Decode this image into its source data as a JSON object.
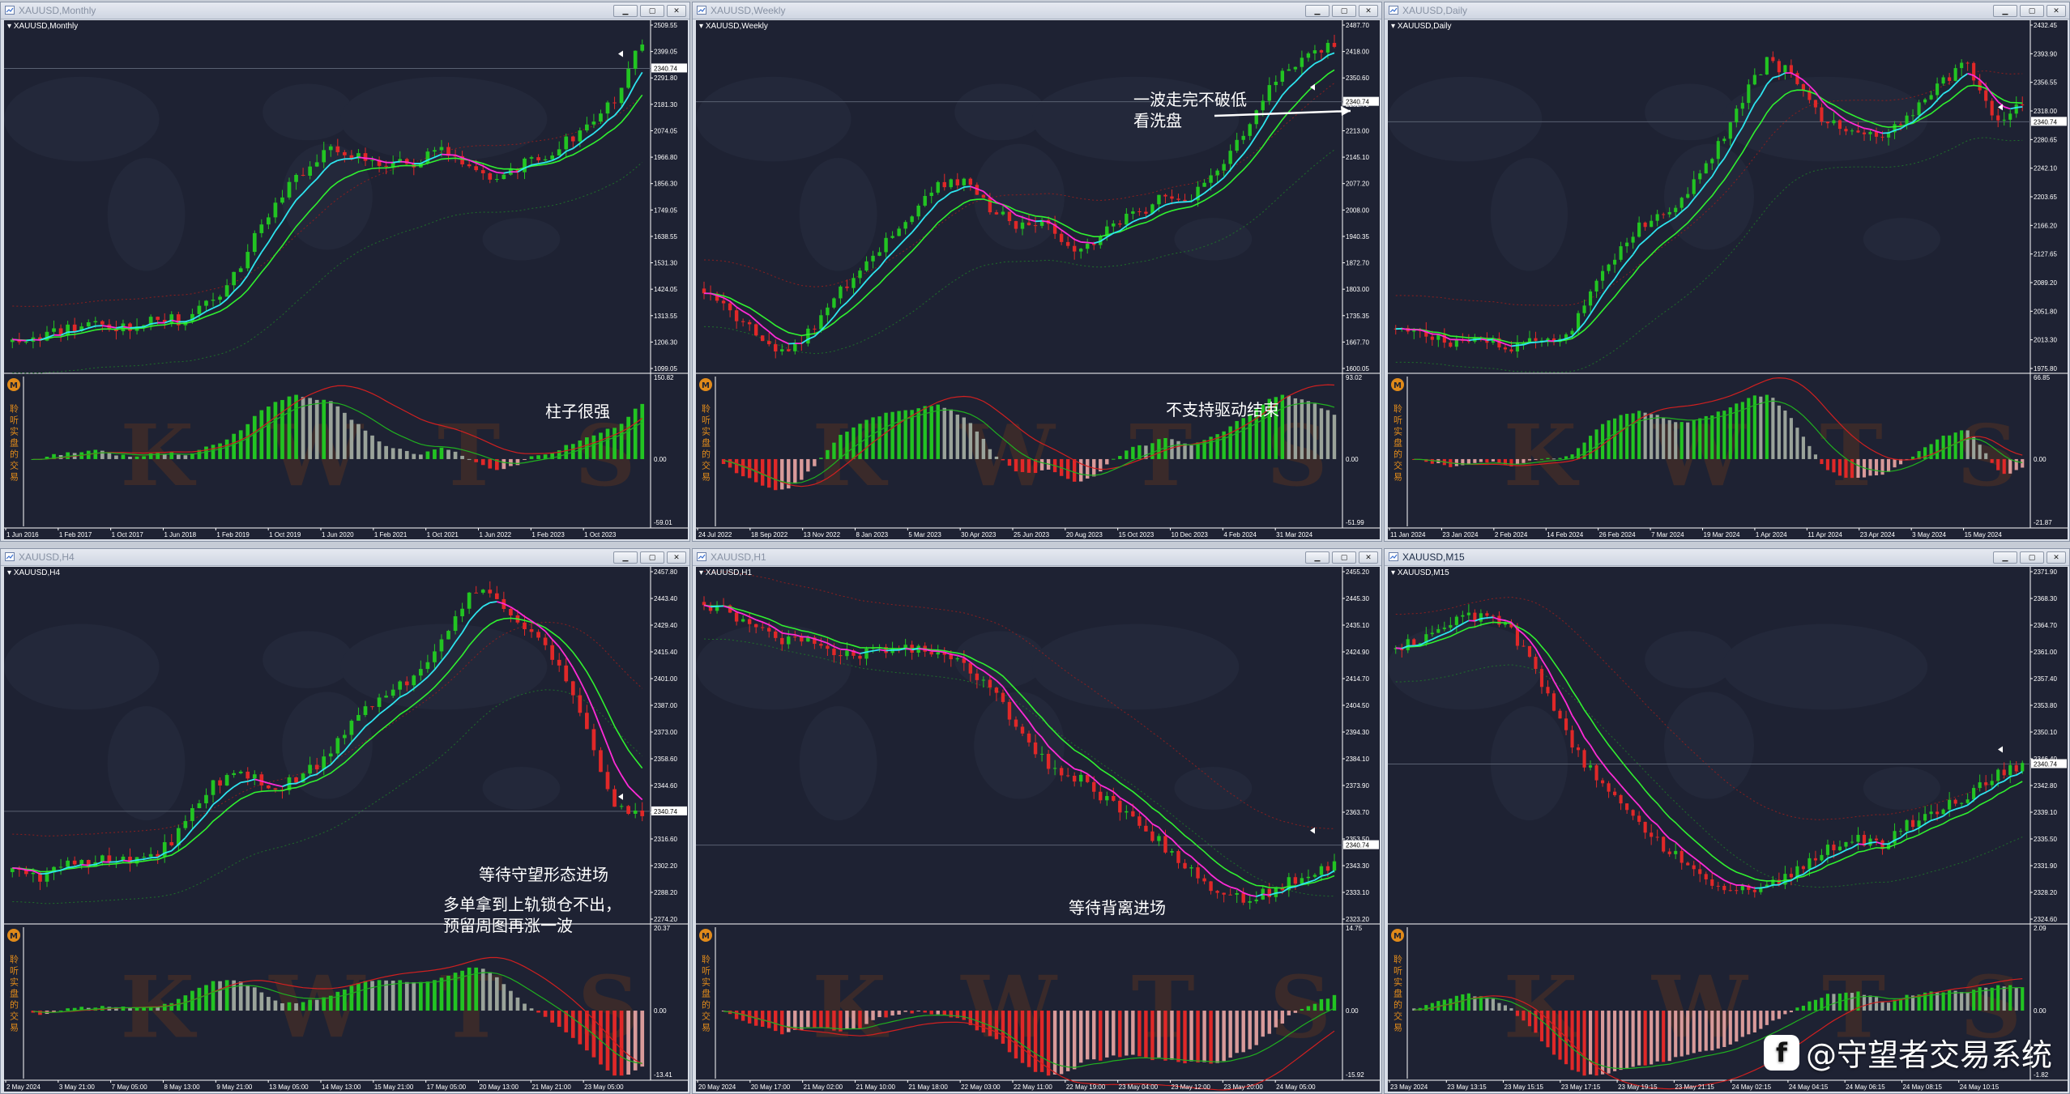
{
  "windows": [
    {
      "title": "XAUUSD,Monthly",
      "symbol": "XAUUSD,Monthly",
      "active": false,
      "price_ticks": [
        "2509.55",
        "2399.05",
        "2291.80",
        "2181.30",
        "2074.05",
        "1966.80",
        "1856.30",
        "1749.05",
        "1638.55",
        "1531.30",
        "1424.05",
        "1313.55",
        "1206.30",
        "1099.05"
      ],
      "current_price": "2340.74",
      "osc_ticks": [
        "150.82",
        "0.00",
        "-59.01"
      ],
      "time_ticks": [
        "1 Jun 2016",
        "1 Feb 2017",
        "1 Oct 2017",
        "1 Jun 2018",
        "1 Feb 2019",
        "1 Oct 2019",
        "1 Jun 2020",
        "1 Feb 2021",
        "1 Oct 2021",
        "1 Jun 2022",
        "1 Feb 2023",
        "1 Oct 2023"
      ],
      "annotations": [
        "柱子很强"
      ]
    },
    {
      "title": "XAUUSD,Weekly",
      "symbol": "XAUUSD,Weekly",
      "active": false,
      "price_ticks": [
        "2487.70",
        "2418.00",
        "2350.60",
        "2282.70",
        "2213.00",
        "2145.10",
        "2077.20",
        "2008.00",
        "1940.35",
        "1872.70",
        "1803.00",
        "1735.35",
        "1667.70",
        "1600.05"
      ],
      "current_price": "2340.74",
      "osc_ticks": [
        "93.02",
        "0.00",
        "-51.99"
      ],
      "time_ticks": [
        "24 Jul 2022",
        "18 Sep 2022",
        "13 Nov 2022",
        "8 Jan 2023",
        "5 Mar 2023",
        "30 Apr 2023",
        "25 Jun 2023",
        "20 Aug 2023",
        "15 Oct 2023",
        "10 Dec 2023",
        "4 Feb 2024",
        "31 Mar 2024"
      ],
      "annotations": [
        "一波走完不破低",
        "看洗盘",
        "不支持驱动结束"
      ]
    },
    {
      "title": "XAUUSD,Daily",
      "symbol": "XAUUSD,Daily",
      "active": false,
      "price_ticks": [
        "2432.45",
        "2393.90",
        "2356.55",
        "2318.00",
        "2280.65",
        "2242.10",
        "2203.65",
        "2166.20",
        "2127.65",
        "2089.20",
        "2051.80",
        "2013.30",
        "1975.80"
      ],
      "current_price": "2340.74",
      "osc_ticks": [
        "66.85",
        "0.00",
        "-21.87"
      ],
      "time_ticks": [
        "11 Jan 2024",
        "23 Jan 2024",
        "2 Feb 2024",
        "14 Feb 2024",
        "26 Feb 2024",
        "7 Mar 2024",
        "19 Mar 2024",
        "1 Apr 2024",
        "11 Apr 2024",
        "23 Apr 2024",
        "3 May 2024",
        "15 May 2024"
      ],
      "annotations": []
    },
    {
      "title": "XAUUSD,H4",
      "symbol": "XAUUSD,H4",
      "active": false,
      "price_ticks": [
        "2457.80",
        "2443.40",
        "2429.40",
        "2415.40",
        "2401.00",
        "2387.00",
        "2373.00",
        "2358.60",
        "2344.60",
        "2330.60",
        "2316.60",
        "2302.20",
        "2288.20",
        "2274.20"
      ],
      "current_price": "2340.74",
      "osc_ticks": [
        "20.37",
        "0.00",
        "-13.41"
      ],
      "time_ticks": [
        "2 May 2024",
        "3 May 21:00",
        "7 May 05:00",
        "8 May 13:00",
        "9 May 21:00",
        "13 May 05:00",
        "14 May 13:00",
        "15 May 21:00",
        "17 May 05:00",
        "20 May 13:00",
        "21 May 21:00",
        "23 May 05:00"
      ],
      "annotations": [
        "等待守望形态进场",
        "多单拿到上轨锁仓不出，",
        "预留周图再涨一波"
      ]
    },
    {
      "title": "XAUUSD,H1",
      "symbol": "XAUUSD,H1",
      "active": false,
      "price_ticks": [
        "2455.20",
        "2445.30",
        "2435.10",
        "2424.90",
        "2414.70",
        "2404.50",
        "2394.30",
        "2384.10",
        "2373.90",
        "2363.70",
        "2353.50",
        "2343.30",
        "2333.10",
        "2323.20"
      ],
      "current_price": "2340.74",
      "osc_ticks": [
        "14.75",
        "0.00",
        "-15.92"
      ],
      "time_ticks": [
        "20 May 2024",
        "20 May 17:00",
        "21 May 02:00",
        "21 May 10:00",
        "21 May 18:00",
        "22 May 03:00",
        "22 May 11:00",
        "22 May 19:00",
        "23 May 04:00",
        "23 May 12:00",
        "23 May 20:00",
        "24 May 05:00"
      ],
      "annotations": [
        "等待背离进场"
      ]
    },
    {
      "title": "XAUUSD,M15",
      "symbol": "XAUUSD,M15",
      "active": true,
      "price_ticks": [
        "2371.90",
        "2368.30",
        "2364.70",
        "2361.00",
        "2357.40",
        "2353.80",
        "2350.10",
        "2346.40",
        "2342.80",
        "2339.10",
        "2335.50",
        "2331.90",
        "2328.20",
        "2324.60"
      ],
      "current_price": "2340.74",
      "osc_ticks": [
        "2.09",
        "0.00",
        "-1.82"
      ],
      "time_ticks": [
        "23 May 2024",
        "23 May 13:15",
        "23 May 15:15",
        "23 May 17:15",
        "23 May 19:15",
        "23 May 21:15",
        "24 May 02:15",
        "24 May 04:15",
        "24 May 06:15",
        "24 May 08:15",
        "24 May 10:15"
      ],
      "annotations": []
    }
  ],
  "indicator_label": "聆听实盘的交易",
  "indicator_watermark": "K W T S",
  "indicator_logo": "M",
  "watermark": {
    "logo": "f",
    "text": "@守望者交易系统"
  },
  "colors": {
    "background": "#1e2233",
    "bull": "#22c422",
    "bear": "#e02828",
    "cyan": "#2ee6f0",
    "magenta": "#ff2bd8",
    "green_line": "#30f030",
    "red_line": "#ff2020"
  }
}
